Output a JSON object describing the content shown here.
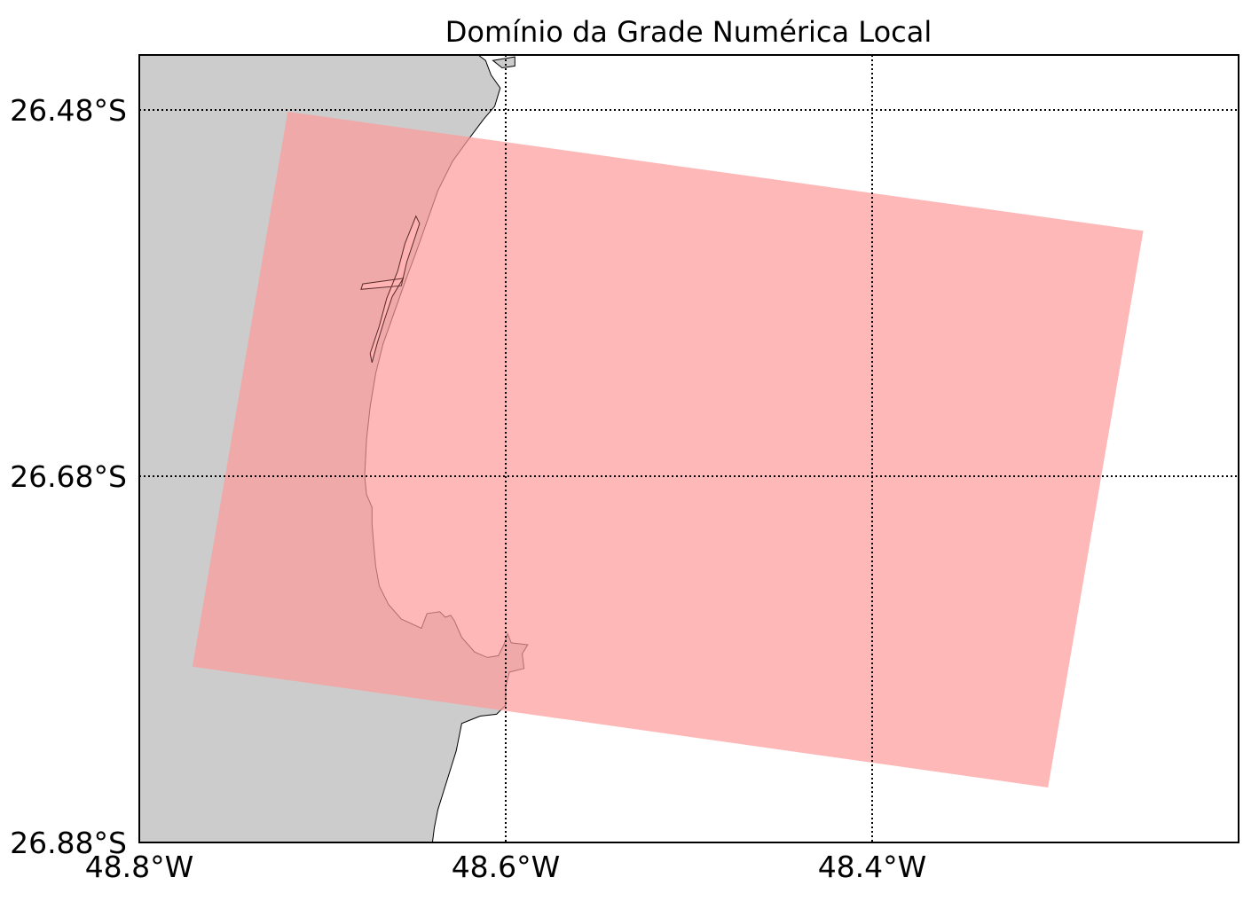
{
  "map": {
    "title": "Domínio da Grade Numérica Local",
    "lon_range": [
      -48.8,
      -48.2
    ],
    "lat_range": [
      -26.88,
      -26.45
    ],
    "meridians": [
      {
        "value": -48.8,
        "label": "48.8°W"
      },
      {
        "value": -48.6,
        "label": "48.6°W"
      },
      {
        "value": -48.4,
        "label": "48.4°W"
      }
    ],
    "parallels": [
      {
        "value": -26.48,
        "label": "26.48°S"
      },
      {
        "value": -26.68,
        "label": "26.68°S"
      },
      {
        "value": -26.88,
        "label": "26.88°S"
      }
    ],
    "colors": {
      "land": "#cccccc",
      "coastline": "#000000",
      "grid_domain": "#ff9a9a",
      "gridlines": "#000000",
      "frame": "#000000"
    },
    "grid_domain_corners": [
      [
        -48.719,
        -26.481
      ],
      [
        -48.252,
        -26.546
      ],
      [
        -48.304,
        -26.85
      ],
      [
        -48.771,
        -26.784
      ]
    ],
    "coastline": [
      [
        -48.615,
        -26.45
      ],
      [
        -48.611,
        -26.453
      ],
      [
        -48.608,
        -26.461
      ],
      [
        -48.603,
        -26.468
      ],
      [
        -48.606,
        -26.478
      ],
      [
        -48.612,
        -26.485
      ],
      [
        -48.621,
        -26.497
      ],
      [
        -48.629,
        -26.508
      ],
      [
        -48.637,
        -26.524
      ],
      [
        -48.643,
        -26.541
      ],
      [
        -48.649,
        -26.558
      ],
      [
        -48.655,
        -26.574
      ],
      [
        -48.661,
        -26.591
      ],
      [
        -48.667,
        -26.608
      ],
      [
        -48.671,
        -26.624
      ],
      [
        -48.674,
        -26.642
      ],
      [
        -48.676,
        -26.66
      ],
      [
        -48.677,
        -26.68
      ],
      [
        -48.676,
        -26.69
      ],
      [
        -48.673,
        -26.697
      ],
      [
        -48.673,
        -26.706
      ],
      [
        -48.672,
        -26.718
      ],
      [
        -48.671,
        -26.729
      ],
      [
        -48.669,
        -26.74
      ],
      [
        -48.664,
        -26.75
      ],
      [
        -48.657,
        -26.758
      ],
      [
        -48.646,
        -26.763
      ],
      [
        -48.643,
        -26.755
      ],
      [
        -48.636,
        -26.754
      ],
      [
        -48.633,
        -26.757
      ],
      [
        -48.63,
        -26.756
      ],
      [
        -48.628,
        -26.759
      ],
      [
        -48.624,
        -26.768
      ],
      [
        -48.617,
        -26.776
      ],
      [
        -48.61,
        -26.779
      ],
      [
        -48.604,
        -26.778
      ],
      [
        -48.601,
        -26.772
      ],
      [
        -48.599,
        -26.766
      ],
      [
        -48.597,
        -26.771
      ],
      [
        -48.588,
        -26.772
      ],
      [
        -48.591,
        -26.777
      ],
      [
        -48.59,
        -26.785
      ],
      [
        -48.598,
        -26.787
      ],
      [
        -48.6,
        -26.795
      ],
      [
        -48.6,
        -26.805
      ],
      [
        -48.605,
        -26.81
      ],
      [
        -48.614,
        -26.811
      ],
      [
        -48.624,
        -26.815
      ],
      [
        -48.627,
        -26.83
      ],
      [
        -48.632,
        -26.846
      ],
      [
        -48.637,
        -26.862
      ],
      [
        -48.639,
        -26.872
      ],
      [
        -48.64,
        -26.88
      ]
    ],
    "lagoon": [
      [
        -48.649,
        -26.538
      ],
      [
        -48.655,
        -26.553
      ],
      [
        -48.659,
        -26.568
      ],
      [
        -48.665,
        -26.583
      ],
      [
        -48.669,
        -26.598
      ],
      [
        -48.674,
        -26.613
      ],
      [
        -48.673,
        -26.618
      ],
      [
        -48.67,
        -26.607
      ],
      [
        -48.666,
        -26.594
      ],
      [
        -48.662,
        -26.582
      ],
      [
        -48.656,
        -26.572
      ],
      [
        -48.678,
        -26.575
      ],
      [
        -48.679,
        -26.578
      ],
      [
        -48.657,
        -26.576
      ],
      [
        -48.654,
        -26.563
      ],
      [
        -48.65,
        -26.551
      ],
      [
        -48.647,
        -26.542
      ]
    ],
    "north_islet": [
      [
        -48.607,
        -26.453
      ],
      [
        -48.601,
        -26.452
      ],
      [
        -48.595,
        -26.451
      ],
      [
        -48.595,
        -26.456
      ],
      [
        -48.602,
        -26.457
      ]
    ]
  }
}
